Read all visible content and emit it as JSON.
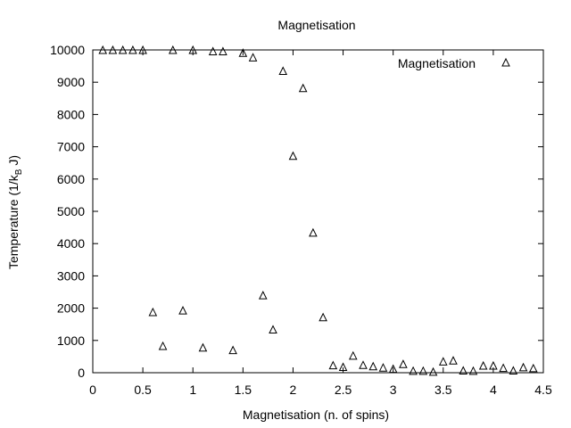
{
  "chart_data": {
    "type": "scatter",
    "title": "Magnetisation",
    "xlabel": "Magnetisation (n. of spins)",
    "ylabel_main": "Temperature (1/k",
    "ylabel_sub": "B",
    "ylabel_tail": " J)",
    "xlim": [
      0,
      4.5
    ],
    "ylim": [
      0,
      10000
    ],
    "x_ticks": [
      0,
      0.5,
      1,
      1.5,
      2,
      2.5,
      3,
      3.5,
      4,
      4.5
    ],
    "x_tick_labels": [
      "0",
      "0.5",
      "1",
      "1.5",
      "2",
      "2.5",
      "3",
      "3.5",
      "4",
      "4.5"
    ],
    "y_ticks": [
      0,
      1000,
      2000,
      3000,
      4000,
      5000,
      6000,
      7000,
      8000,
      9000,
      10000
    ],
    "y_tick_labels": [
      "0",
      "1000",
      "2000",
      "3000",
      "4000",
      "5000",
      "6000",
      "7000",
      "8000",
      "9000",
      "10000"
    ],
    "grid": false,
    "legend_position": "top-right",
    "marker": "open-triangle",
    "series": [
      {
        "name": "Magnetisation",
        "points": [
          [
            0.1,
            10000
          ],
          [
            0.2,
            10000
          ],
          [
            0.3,
            10000
          ],
          [
            0.4,
            10000
          ],
          [
            0.5,
            10000
          ],
          [
            0.6,
            1880
          ],
          [
            0.7,
            830
          ],
          [
            0.8,
            10000
          ],
          [
            0.9,
            1930
          ],
          [
            1.0,
            10000
          ],
          [
            1.1,
            780
          ],
          [
            1.2,
            9960
          ],
          [
            1.3,
            9960
          ],
          [
            1.4,
            700
          ],
          [
            1.5,
            9910
          ],
          [
            1.6,
            9770
          ],
          [
            1.7,
            2400
          ],
          [
            1.8,
            1340
          ],
          [
            1.9,
            9350
          ],
          [
            2.0,
            6720
          ],
          [
            2.1,
            8820
          ],
          [
            2.2,
            4340
          ],
          [
            2.3,
            1720
          ],
          [
            2.4,
            230
          ],
          [
            2.5,
            180
          ],
          [
            2.6,
            530
          ],
          [
            2.7,
            240
          ],
          [
            2.8,
            200
          ],
          [
            2.9,
            160
          ],
          [
            3.0,
            120
          ],
          [
            3.1,
            270
          ],
          [
            3.2,
            60
          ],
          [
            3.3,
            60
          ],
          [
            3.4,
            30
          ],
          [
            3.5,
            350
          ],
          [
            3.6,
            380
          ],
          [
            3.7,
            70
          ],
          [
            3.8,
            60
          ],
          [
            3.9,
            220
          ],
          [
            4.0,
            220
          ],
          [
            4.1,
            150
          ],
          [
            4.2,
            70
          ],
          [
            4.3,
            170
          ],
          [
            4.4,
            140
          ]
        ]
      }
    ]
  }
}
